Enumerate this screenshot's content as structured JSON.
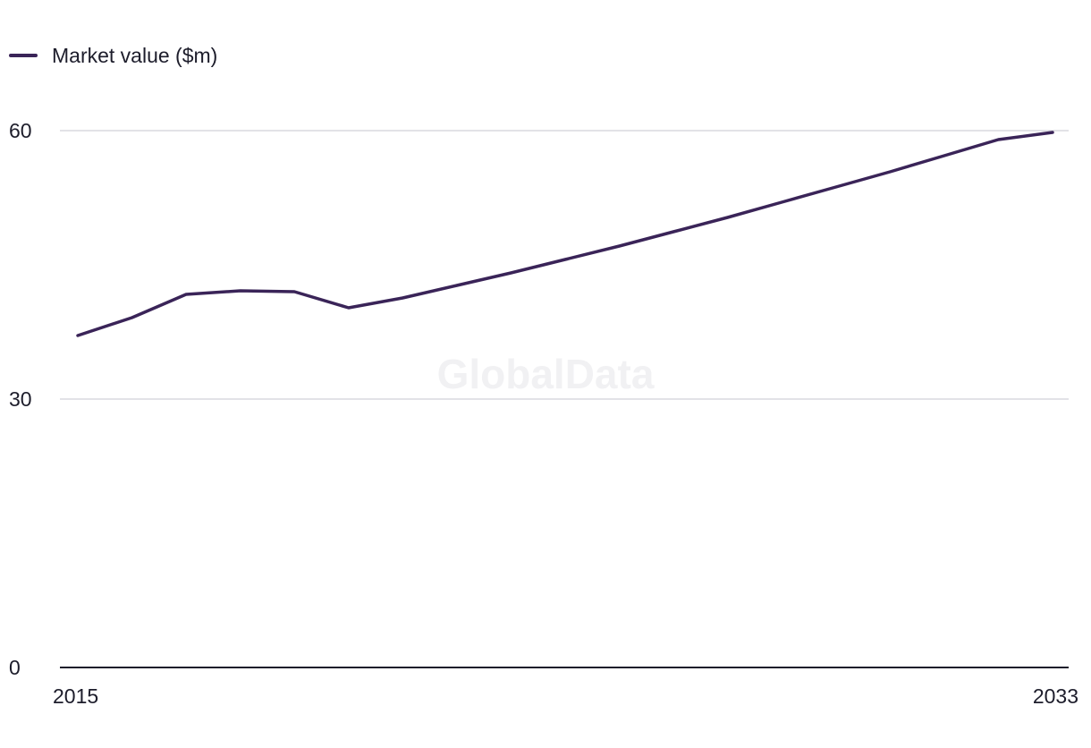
{
  "legend": {
    "label": "Market value ($m)"
  },
  "watermark": "GlobalData",
  "colors": {
    "series": "#3a2458",
    "grid": "#d9d9df",
    "axis": "#1d1d2b",
    "text": "#1d1d2b",
    "watermark": "#f1f1f3"
  },
  "chart_data": {
    "type": "line",
    "title": "",
    "xlabel": "",
    "ylabel": "",
    "x": [
      2015,
      2016,
      2017,
      2018,
      2019,
      2020,
      2021,
      2022,
      2023,
      2024,
      2025,
      2026,
      2027,
      2028,
      2029,
      2030,
      2031,
      2032,
      2033
    ],
    "series": [
      {
        "name": "Market value ($m)",
        "values": [
          37.1,
          39.1,
          41.7,
          42.1,
          42.0,
          40.2,
          41.3,
          42.7,
          44.1,
          45.6,
          47.1,
          48.7,
          50.3,
          52.0,
          53.7,
          55.4,
          57.2,
          59.0,
          59.8
        ]
      }
    ],
    "ylim": [
      0,
      60
    ],
    "yticks": [
      0,
      30,
      60
    ],
    "xtick_labels": [
      "2015",
      "2033"
    ],
    "grid": true,
    "legend_position": "top-left"
  }
}
